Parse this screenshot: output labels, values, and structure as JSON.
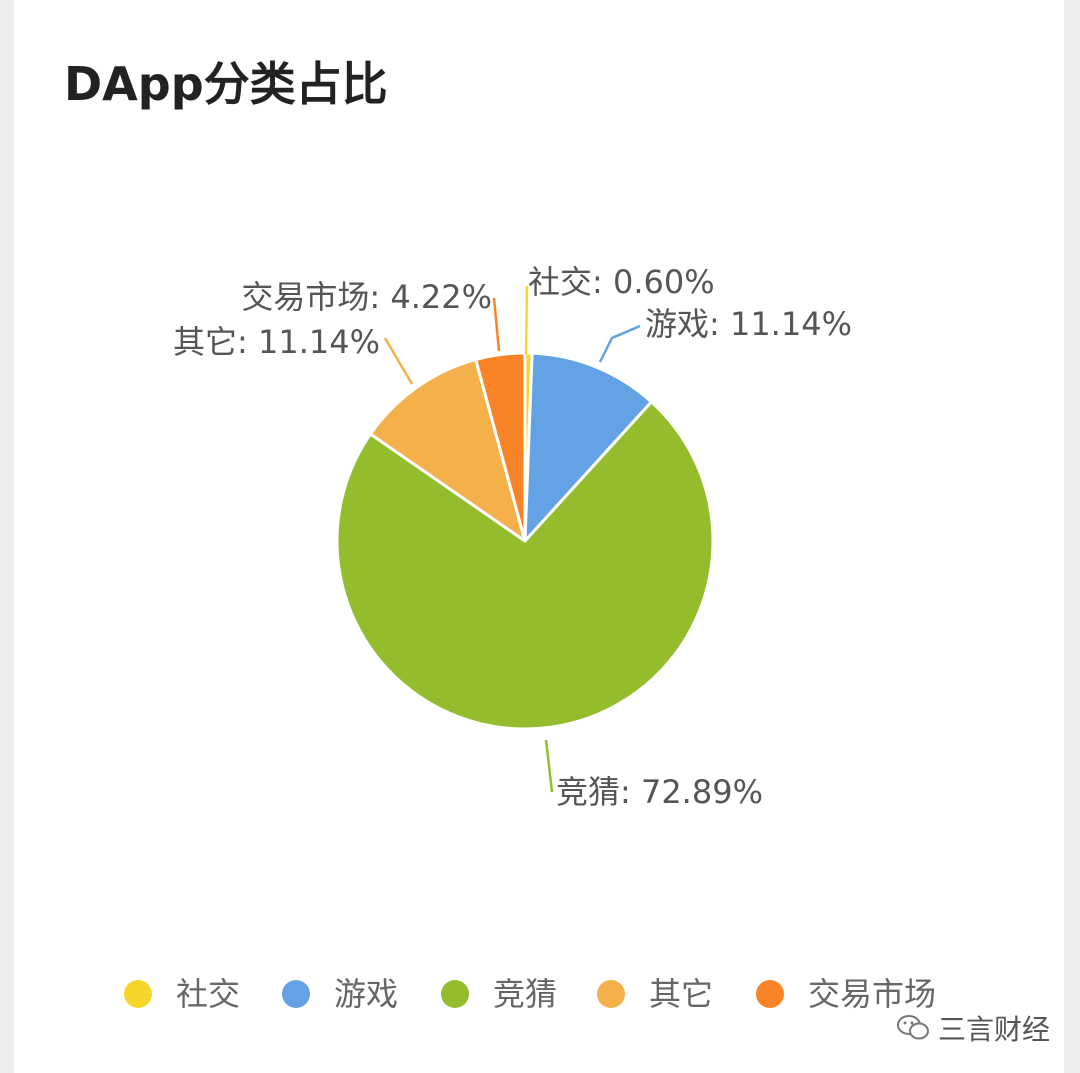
{
  "chart_data": {
    "type": "pie",
    "title": "DApp分类占比",
    "categories": [
      "社交",
      "游戏",
      "竞猜",
      "其它",
      "交易市场"
    ],
    "values": [
      0.6,
      11.14,
      72.89,
      11.14,
      4.22
    ],
    "labels": [
      "社交: 0.60%",
      "游戏: 11.14%",
      "竞猜: 72.89%",
      "其它: 11.14%",
      "交易市场: 4.22%"
    ],
    "colors": [
      "#f7d62c",
      "#64a2e6",
      "#93bd2d",
      "#f4b04a",
      "#f88427"
    ],
    "legend": "bottom"
  },
  "watermark": {
    "text": "三言财经",
    "icon": "wechat-icon"
  }
}
